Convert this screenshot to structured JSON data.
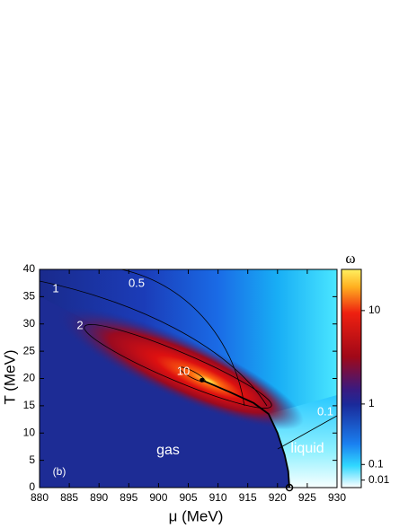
{
  "chart_data": {
    "type": "contour",
    "xlabel": "μ (MeV)",
    "ylabel": "T (MeV)",
    "xlim": [
      880,
      930
    ],
    "xticks": [
      880,
      885,
      890,
      895,
      900,
      905,
      910,
      915,
      920,
      925,
      930
    ],
    "ylim": [
      0,
      40
    ],
    "yticks": [
      0,
      5,
      10,
      15,
      20,
      25,
      30,
      35,
      40
    ],
    "colorbar": {
      "label": "ω",
      "clim": [
        0,
        26
      ],
      "ticks": [
        10,
        1,
        0.1,
        0.01
      ]
    },
    "contour_labels": [
      1,
      0.5,
      2,
      10,
      0.1
    ],
    "annotations": [
      "gas",
      "liquid",
      "(b)"
    ],
    "critical_point": {
      "x": 907.3,
      "y": 19.7
    },
    "phase_boundary": {
      "x": [
        907.3,
        912,
        916,
        918.5,
        920,
        921.2,
        921.8,
        922
      ],
      "y": [
        19.7,
        17.5,
        15.5,
        13.5,
        10,
        6,
        3,
        0
      ]
    }
  }
}
